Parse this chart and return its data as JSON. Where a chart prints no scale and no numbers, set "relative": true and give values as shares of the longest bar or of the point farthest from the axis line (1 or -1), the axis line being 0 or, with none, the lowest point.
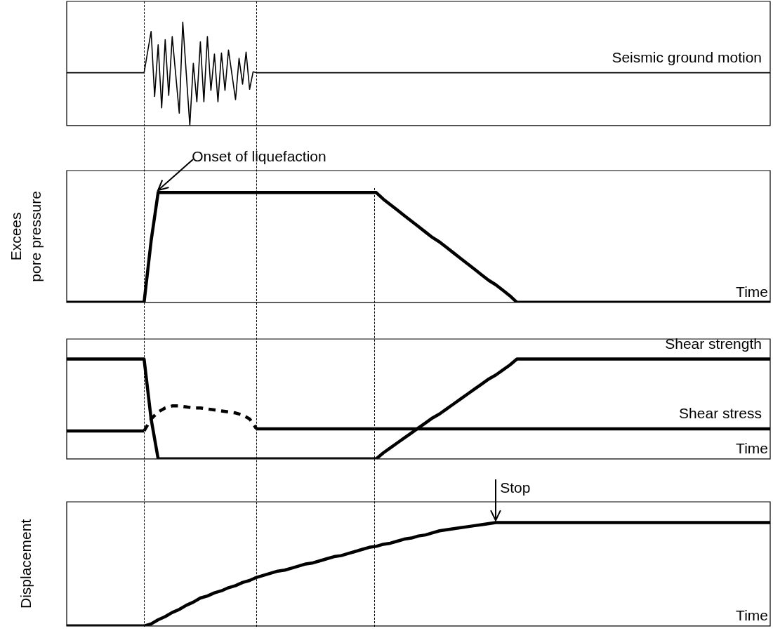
{
  "chart_data": [
    {
      "type": "line",
      "relative": true,
      "marker": "none",
      "legend": false,
      "categories": [
        null,
        null,
        null,
        null,
        null,
        null,
        null,
        null,
        null,
        null,
        null,
        null,
        null,
        null,
        null,
        null,
        null,
        null,
        null,
        null,
        null,
        null,
        null,
        null,
        null,
        null,
        null,
        null,
        null,
        null,
        null,
        null,
        null,
        null,
        null,
        null,
        null,
        null,
        null,
        null,
        null,
        null,
        null,
        null,
        null,
        null,
        null,
        null,
        null,
        null,
        null,
        null,
        null,
        null,
        null,
        null,
        null,
        null,
        null,
        null,
        null,
        null,
        null,
        null,
        null,
        null,
        null,
        null,
        null,
        null,
        null,
        null,
        null,
        null,
        null,
        null,
        null,
        null,
        null,
        null,
        null,
        null,
        null,
        null,
        null,
        null,
        null,
        null,
        null,
        null,
        null,
        null,
        null,
        null,
        null,
        null,
        null,
        null,
        null,
        null,
        null,
        null,
        null,
        null,
        null,
        null,
        null,
        null,
        null,
        null,
        null,
        null,
        null,
        null,
        null,
        null,
        null,
        null,
        null,
        null,
        null,
        null,
        null,
        null,
        null,
        null,
        null,
        null,
        null,
        null,
        null,
        null,
        null,
        null,
        null,
        null,
        null,
        null,
        null,
        null,
        null,
        null,
        null,
        null,
        null,
        null,
        null,
        null,
        null,
        null,
        null,
        null,
        null,
        null,
        null,
        null,
        null,
        null,
        null,
        null,
        null,
        null,
        null,
        null,
        null,
        null,
        null,
        null,
        null,
        null,
        null,
        null,
        null,
        null,
        null,
        null,
        null,
        null,
        null,
        null,
        null,
        null,
        null,
        null,
        null,
        null,
        null,
        null,
        null,
        null,
        null,
        null,
        null,
        null,
        null,
        null,
        null,
        null,
        null,
        null,
        null
      ],
      "series": [
        {
          "name": "Seismic ground motion",
          "color": "#000000",
          "values": [
            0.51,
            0.51,
            0.51,
            0.51,
            0.51,
            0.51,
            0.51,
            0.51,
            0.51,
            0.51,
            0.51,
            0.51,
            0.51,
            0.51,
            0.51,
            0.51,
            0.51,
            0.51,
            0.51,
            0.51,
            0.51,
            0.51,
            0.51,
            0.71,
            0.91,
            0.28,
            0.78,
            0.17,
            0.83,
            0.29,
            0.86,
            0.49,
            0.12,
            1,
            0.5,
            0,
            0.6,
            0.23,
            0.81,
            0.23,
            0.86,
            0.34,
            0.69,
            0.23,
            0.7,
            0.34,
            0.73,
            0.49,
            0.25,
            0.65,
            0.4,
            0.71,
            0.35,
            0.52,
            0.51,
            0.51,
            0.51,
            0.51,
            0.51,
            0.51,
            0.51,
            0.51,
            0.51,
            0.51,
            0.51,
            0.51,
            0.51,
            0.51,
            0.51,
            0.51,
            0.51,
            0.51,
            0.51,
            0.51,
            0.51,
            0.51,
            0.51,
            0.51,
            0.51,
            0.51,
            0.51,
            0.51,
            0.51,
            0.51,
            0.51,
            0.51,
            0.51,
            0.51,
            0.51,
            0.51,
            0.51,
            0.51,
            0.51,
            0.51,
            0.51,
            0.51,
            0.51,
            0.51,
            0.51,
            0.51,
            0.51,
            0.51,
            0.51,
            0.51,
            0.51,
            0.51,
            0.51,
            0.51,
            0.51,
            0.51,
            0.51,
            0.51,
            0.51,
            0.51,
            0.51,
            0.51,
            0.51,
            0.51,
            0.51,
            0.51,
            0.51,
            0.51,
            0.51,
            0.51,
            0.51,
            0.51,
            0.51,
            0.51,
            0.51,
            0.51,
            0.51,
            0.51,
            0.51,
            0.51,
            0.51,
            0.51,
            0.51,
            0.51,
            0.51,
            0.51,
            0.51,
            0.51,
            0.51,
            0.51,
            0.51,
            0.51,
            0.51,
            0.51,
            0.51,
            0.51,
            0.51,
            0.51,
            0.51,
            0.51,
            0.51,
            0.51,
            0.51,
            0.51,
            0.51,
            0.51,
            0.51,
            0.51,
            0.51,
            0.51,
            0.51,
            0.51,
            0.51,
            0.51,
            0.51,
            0.51,
            0.51,
            0.51,
            0.51,
            0.51,
            0.51,
            0.51,
            0.51,
            0.51,
            0.51,
            0.51,
            0.51,
            0.51,
            0.51,
            0.51,
            0.51,
            0.51,
            0.51,
            0.51,
            0.51,
            0.51,
            0.51,
            0.51,
            0.51,
            0.51,
            0.51,
            0.51,
            0.51,
            0.51,
            0.51,
            0.51,
            0.51
          ]
        }
      ]
    },
    {
      "type": "line",
      "relative": true,
      "marker": "none",
      "legend": false,
      "ylabel": "Excees pore pressure",
      "xlabel": "Time",
      "categories": [
        null,
        null,
        null,
        null,
        null,
        null,
        null,
        null,
        null,
        null,
        null,
        null,
        null,
        null,
        null,
        null,
        null,
        null,
        null,
        null,
        null,
        null,
        null,
        null,
        null,
        null,
        null,
        null,
        null,
        null,
        null,
        null,
        null,
        null,
        null,
        null,
        null,
        null,
        null,
        null,
        null,
        null,
        null,
        null,
        null,
        null,
        null,
        null,
        null,
        null,
        null,
        null,
        null,
        null,
        null,
        null,
        null,
        null,
        null,
        null,
        null,
        null,
        null,
        null,
        null,
        null,
        null,
        null,
        null,
        null,
        null,
        null,
        null,
        null,
        null,
        null,
        null,
        null,
        null,
        null,
        null,
        null,
        null,
        null,
        null,
        null,
        null,
        null,
        null,
        null,
        null,
        null,
        null,
        null,
        null,
        null,
        null,
        null,
        null,
        null,
        null
      ],
      "series": [
        {
          "color": "#000000",
          "values": [
            0,
            0,
            0,
            0,
            0,
            0,
            0,
            0,
            0,
            0,
            0,
            0,
            0.56,
            1,
            1,
            1,
            1,
            1,
            1,
            1,
            1,
            1,
            1,
            1,
            1,
            1,
            1,
            1,
            1,
            1,
            1,
            1,
            1,
            1,
            1,
            1,
            1,
            1,
            1,
            1,
            1,
            1,
            1,
            1,
            1,
            0.94,
            0.89,
            0.84,
            0.79,
            0.74,
            0.69,
            0.64,
            0.59,
            0.55,
            0.5,
            0.45,
            0.4,
            0.35,
            0.3,
            0.25,
            0.2,
            0.16,
            0.11,
            0.06,
            0,
            0,
            0,
            0,
            0,
            0,
            0,
            0,
            0,
            0,
            0,
            0,
            0,
            0,
            0,
            0,
            0,
            0,
            0,
            0,
            0,
            0,
            0,
            0,
            0,
            0,
            0,
            0,
            0,
            0,
            0,
            0,
            0,
            0,
            0,
            0,
            0
          ]
        }
      ],
      "annotations": [
        "Onset of liquefaction"
      ]
    },
    {
      "type": "line",
      "relative": true,
      "marker": "none",
      "legend": false,
      "xlabel": "Time",
      "categories": [
        null,
        null,
        null,
        null,
        null,
        null,
        null,
        null,
        null,
        null,
        null,
        null,
        null,
        null,
        null,
        null,
        null,
        null,
        null,
        null,
        null,
        null,
        null,
        null,
        null,
        null,
        null,
        null,
        null,
        null,
        null,
        null,
        null,
        null,
        null,
        null,
        null,
        null,
        null,
        null,
        null,
        null,
        null,
        null,
        null,
        null,
        null,
        null,
        null,
        null,
        null,
        null,
        null,
        null,
        null,
        null,
        null,
        null,
        null,
        null,
        null,
        null,
        null,
        null,
        null,
        null,
        null,
        null,
        null,
        null,
        null,
        null,
        null,
        null,
        null,
        null,
        null,
        null,
        null,
        null,
        null,
        null,
        null,
        null,
        null,
        null,
        null,
        null,
        null,
        null,
        null,
        null,
        null,
        null,
        null,
        null,
        null,
        null,
        null,
        null,
        null
      ],
      "series": [
        {
          "name": "Shear strength",
          "color": "#000000",
          "values": [
            1,
            1,
            1,
            1,
            1,
            1,
            1,
            1,
            1,
            1,
            1,
            1,
            0.4,
            0,
            0,
            0,
            0,
            0,
            0,
            0,
            0,
            0,
            0,
            0,
            0,
            0,
            0,
            0,
            0,
            0,
            0,
            0,
            0,
            0,
            0,
            0,
            0,
            0,
            0,
            0,
            0,
            0,
            0,
            0,
            0,
            0.06,
            0.11,
            0.16,
            0.21,
            0.26,
            0.31,
            0.36,
            0.41,
            0.45,
            0.5,
            0.55,
            0.6,
            0.65,
            0.7,
            0.75,
            0.8,
            0.84,
            0.89,
            0.94,
            1,
            1,
            1,
            1,
            1,
            1,
            1,
            1,
            1,
            1,
            1,
            1,
            1,
            1,
            1,
            1,
            1,
            1,
            1,
            1,
            1,
            1,
            1,
            1,
            1,
            1,
            1,
            1,
            1,
            1,
            1,
            1,
            1,
            1,
            1,
            1,
            1
          ]
        },
        {
          "name": "Shear stress",
          "color": "#000000",
          "values": [
            0.28,
            0.28,
            0.28,
            0.28,
            0.28,
            0.28,
            0.28,
            0.28,
            0.28,
            0.28,
            0.28,
            0.28,
            null,
            null,
            null,
            null,
            null,
            null,
            null,
            null,
            null,
            null,
            null,
            null,
            null,
            null,
            null,
            0.3,
            0.3,
            0.3,
            0.3,
            0.3,
            0.3,
            0.3,
            0.3,
            0.3,
            0.3,
            0.3,
            0.3,
            0.3,
            0.3,
            0.3,
            0.3,
            0.3,
            0.3,
            0.3,
            0.3,
            0.3,
            0.3,
            0.3,
            0.3,
            0.3,
            0.3,
            0.3,
            0.3,
            0.3,
            0.3,
            0.3,
            0.3,
            0.3,
            0.3,
            0.3,
            0.3,
            0.3,
            0.3,
            0.3,
            0.3,
            0.3,
            0.3,
            0.3,
            0.3,
            0.3,
            0.3,
            0.3,
            0.3,
            0.3,
            0.3,
            0.3,
            0.3,
            0.3,
            0.3,
            0.3,
            0.3,
            0.3,
            0.3,
            0.3,
            0.3,
            0.3,
            0.3,
            0.3,
            0.3,
            0.3,
            0.3,
            0.3,
            0.3,
            0.3,
            0.3,
            0.3,
            0.3,
            0.3,
            0.3
          ]
        },
        {
          "color": "#000000",
          "line_style": "dashed",
          "values": [
            null,
            null,
            null,
            null,
            null,
            null,
            null,
            null,
            null,
            null,
            null,
            0.28,
            0.4,
            0.47,
            0.51,
            0.53,
            0.53,
            0.52,
            0.51,
            0.51,
            0.5,
            0.49,
            0.48,
            0.47,
            0.46,
            0.44,
            0.4,
            0.3,
            null,
            null,
            null,
            null,
            null,
            null,
            null,
            null,
            null,
            null,
            null,
            null,
            null,
            null,
            null,
            null,
            null,
            null,
            null,
            null,
            null,
            null,
            null,
            null,
            null,
            null,
            null,
            null,
            null,
            null,
            null,
            null,
            null,
            null,
            null,
            null,
            null,
            null,
            null,
            null,
            null,
            null,
            null,
            null,
            null,
            null,
            null,
            null,
            null,
            null,
            null,
            null,
            null,
            null,
            null,
            null,
            null,
            null,
            null,
            null,
            null,
            null,
            null,
            null,
            null,
            null,
            null,
            null,
            null,
            null,
            null,
            null,
            null
          ]
        }
      ]
    },
    {
      "type": "line",
      "relative": true,
      "marker": "none",
      "legend": false,
      "ylabel": "Displacement",
      "xlabel": "Time",
      "categories": [
        null,
        null,
        null,
        null,
        null,
        null,
        null,
        null,
        null,
        null,
        null,
        null,
        null,
        null,
        null,
        null,
        null,
        null,
        null,
        null,
        null,
        null,
        null,
        null,
        null,
        null,
        null,
        null,
        null,
        null,
        null,
        null,
        null,
        null,
        null,
        null,
        null,
        null,
        null,
        null,
        null,
        null,
        null,
        null,
        null,
        null,
        null,
        null,
        null,
        null,
        null,
        null,
        null,
        null,
        null,
        null,
        null,
        null,
        null,
        null,
        null,
        null,
        null,
        null,
        null,
        null,
        null,
        null,
        null,
        null,
        null,
        null,
        null,
        null,
        null,
        null,
        null,
        null,
        null,
        null,
        null,
        null,
        null,
        null,
        null,
        null,
        null,
        null,
        null,
        null,
        null,
        null,
        null,
        null,
        null,
        null,
        null,
        null,
        null,
        null,
        null
      ],
      "series": [
        {
          "color": "#000000",
          "values": [
            0,
            0,
            0,
            0,
            0,
            0,
            0,
            0,
            0,
            0,
            0,
            0,
            0.02,
            0.06,
            0.09,
            0.13,
            0.16,
            0.2,
            0.23,
            0.27,
            0.29,
            0.32,
            0.34,
            0.37,
            0.39,
            0.42,
            0.44,
            0.47,
            0.49,
            0.51,
            0.53,
            0.54,
            0.56,
            0.58,
            0.6,
            0.61,
            0.63,
            0.65,
            0.67,
            0.68,
            0.7,
            0.72,
            0.74,
            0.76,
            0.77,
            0.79,
            0.8,
            0.82,
            0.84,
            0.85,
            0.87,
            0.88,
            0.9,
            0.92,
            0.93,
            0.94,
            0.95,
            0.96,
            0.97,
            0.98,
            0.99,
            1,
            1,
            1,
            1,
            1,
            1,
            1,
            1,
            1,
            1,
            1,
            1,
            1,
            1,
            1,
            1,
            1,
            1,
            1,
            1,
            1,
            1,
            1,
            1,
            1,
            1,
            1,
            1,
            1,
            1,
            1,
            1,
            1,
            1,
            1,
            1,
            1,
            1,
            1,
            1
          ]
        }
      ],
      "annotations": [
        "Stop"
      ]
    }
  ]
}
